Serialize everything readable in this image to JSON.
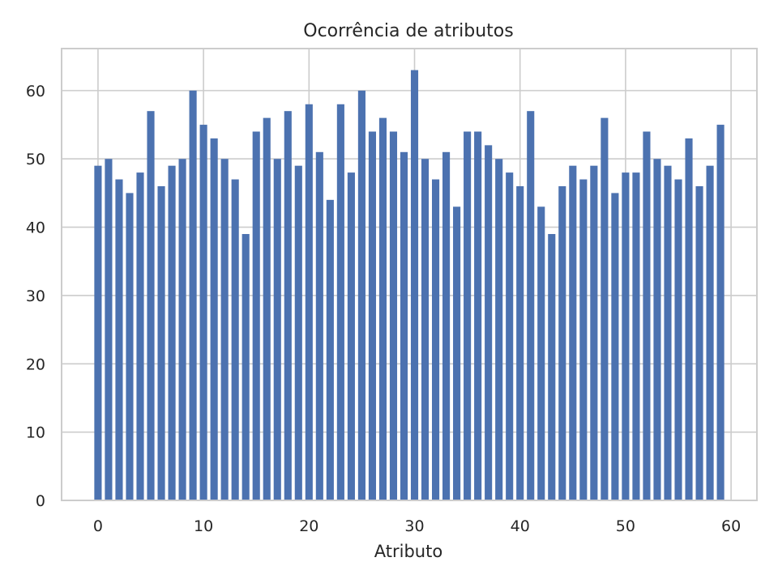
{
  "chart_data": {
    "type": "bar",
    "title": "Ocorrência de atributos",
    "xlabel": "Atributo",
    "ylabel": "",
    "categories": [
      0,
      1,
      2,
      3,
      4,
      5,
      6,
      7,
      8,
      9,
      10,
      11,
      12,
      13,
      14,
      15,
      16,
      17,
      18,
      19,
      20,
      21,
      22,
      23,
      24,
      25,
      26,
      27,
      28,
      29,
      30,
      31,
      32,
      33,
      34,
      35,
      36,
      37,
      38,
      39,
      40,
      41,
      42,
      43,
      44,
      45,
      46,
      47,
      48,
      49,
      50,
      51,
      52,
      53,
      54,
      55,
      56,
      57,
      58,
      59
    ],
    "values": [
      49,
      50,
      47,
      45,
      48,
      57,
      46,
      49,
      50,
      60,
      55,
      53,
      50,
      47,
      39,
      54,
      56,
      50,
      57,
      49,
      58,
      51,
      44,
      58,
      48,
      60,
      54,
      56,
      54,
      51,
      63,
      50,
      47,
      51,
      43,
      54,
      54,
      52,
      50,
      48,
      46,
      57,
      43,
      39,
      46,
      49,
      47,
      49,
      56,
      45,
      48,
      48,
      54,
      50,
      49,
      47,
      53,
      46,
      49,
      55
    ],
    "xlim": [
      -3.45,
      62.45
    ],
    "ylim": [
      0,
      66.15
    ],
    "xticks": [
      0,
      10,
      20,
      30,
      40,
      50,
      60
    ],
    "xtick_labels": [
      "0",
      "10",
      "20",
      "30",
      "40",
      "50",
      "60"
    ],
    "yticks": [
      0,
      10,
      20,
      30,
      40,
      50,
      60
    ],
    "ytick_labels": [
      "0",
      "10",
      "20",
      "30",
      "40",
      "50",
      "60"
    ],
    "bar_color": "#4c72b0",
    "grid": true,
    "legend": "none"
  }
}
